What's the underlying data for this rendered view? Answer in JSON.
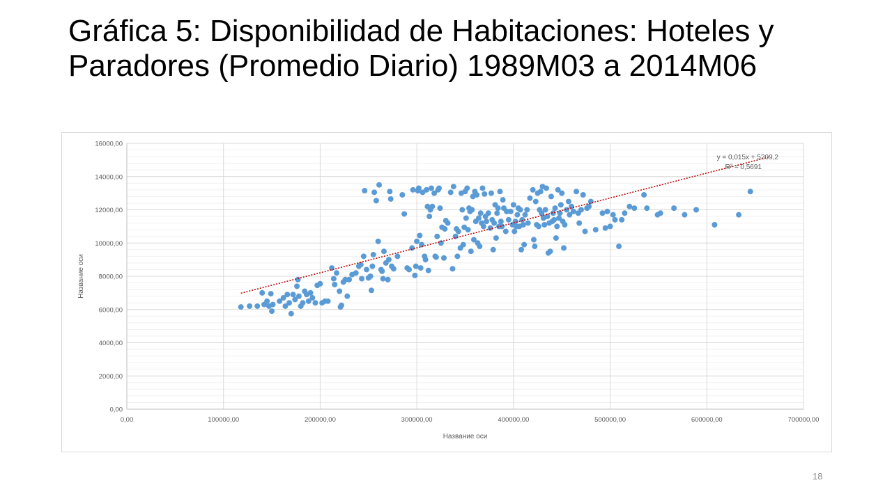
{
  "slide": {
    "title": "Gráfica 5: Disponibilidad de Habitaciones: Hoteles y Paradores (Promedio Diario) 1989M03 a 2014M06",
    "page_number": "18"
  },
  "colors": {
    "points": "#5b9bd5",
    "trendline": "#c00000",
    "gridline": "#d9d9d9",
    "text": "#595959"
  },
  "chart_data": {
    "type": "scatter",
    "xlabel": "Название оси",
    "ylabel": "Название оси",
    "xlim": [
      0,
      700000
    ],
    "ylim": [
      0,
      16000
    ],
    "x_ticks": [
      0,
      100000,
      200000,
      300000,
      400000,
      500000,
      600000,
      700000
    ],
    "x_tick_labels": [
      "0,00",
      "100000,00",
      "200000,00",
      "300000,00",
      "400000,00",
      "500000,00",
      "600000,00",
      "700000,00"
    ],
    "y_ticks": [
      0,
      2000,
      4000,
      6000,
      8000,
      10000,
      12000,
      14000,
      16000
    ],
    "y_tick_labels": [
      "0,00",
      "2000,00",
      "4000,00",
      "6000,00",
      "8000,00",
      "10000,00",
      "12000,00",
      "14000,00",
      "16000,00"
    ],
    "grid": true,
    "legend": "none",
    "trendline": {
      "slope": 0.015,
      "intercept": 5209.2,
      "r2": 0.5691,
      "x_range": [
        118000,
        665000
      ],
      "equation_label": "y = 0,015x + 5209,2",
      "r2_label": "R² = 0,5691"
    },
    "points": [
      [
        118000,
        6150
      ],
      [
        127000,
        6200
      ],
      [
        135000,
        6200
      ],
      [
        140000,
        7000
      ],
      [
        142000,
        6300
      ],
      [
        145000,
        6500
      ],
      [
        147000,
        6200
      ],
      [
        149000,
        6950
      ],
      [
        150000,
        5900
      ],
      [
        151000,
        6300
      ],
      [
        158000,
        6500
      ],
      [
        162000,
        6700
      ],
      [
        164000,
        6200
      ],
      [
        166000,
        6900
      ],
      [
        168000,
        6400
      ],
      [
        170000,
        5750
      ],
      [
        172000,
        6900
      ],
      [
        174000,
        6600
      ],
      [
        176000,
        7400
      ],
      [
        177000,
        7800
      ],
      [
        178000,
        6800
      ],
      [
        180000,
        6200
      ],
      [
        182000,
        6400
      ],
      [
        184000,
        7100
      ],
      [
        186000,
        6900
      ],
      [
        188000,
        6500
      ],
      [
        190000,
        7000
      ],
      [
        192000,
        6700
      ],
      [
        195000,
        6400
      ],
      [
        197000,
        7450
      ],
      [
        200000,
        7550
      ],
      [
        202000,
        6400
      ],
      [
        205000,
        6500
      ],
      [
        208000,
        6500
      ],
      [
        212000,
        8500
      ],
      [
        214000,
        7850
      ],
      [
        215000,
        7500
      ],
      [
        217000,
        8200
      ],
      [
        220000,
        7100
      ],
      [
        221000,
        6150
      ],
      [
        222000,
        6250
      ],
      [
        224000,
        7650
      ],
      [
        226000,
        7800
      ],
      [
        228000,
        6800
      ],
      [
        230000,
        7800
      ],
      [
        233000,
        8100
      ],
      [
        237000,
        8200
      ],
      [
        240000,
        8600
      ],
      [
        242000,
        8700
      ],
      [
        243000,
        7850
      ],
      [
        245000,
        9200
      ],
      [
        246000,
        13150
      ],
      [
        248000,
        8400
      ],
      [
        250000,
        7900
      ],
      [
        252000,
        8000
      ],
      [
        253000,
        7150
      ],
      [
        254000,
        8600
      ],
      [
        255000,
        9300
      ],
      [
        256000,
        13050
      ],
      [
        258000,
        12550
      ],
      [
        260000,
        10100
      ],
      [
        261000,
        13500
      ],
      [
        263000,
        8400
      ],
      [
        264000,
        8300
      ],
      [
        265000,
        7850
      ],
      [
        266000,
        9500
      ],
      [
        268000,
        8800
      ],
      [
        270000,
        7800
      ],
      [
        271000,
        9000
      ],
      [
        272000,
        13100
      ],
      [
        273000,
        12650
      ],
      [
        274000,
        8600
      ],
      [
        276000,
        8450
      ],
      [
        280000,
        9200
      ],
      [
        285000,
        12900
      ],
      [
        287000,
        11750
      ],
      [
        290000,
        8500
      ],
      [
        292000,
        8400
      ],
      [
        295000,
        9700
      ],
      [
        296000,
        13200
      ],
      [
        298000,
        8050
      ],
      [
        299000,
        8600
      ],
      [
        300000,
        10100
      ],
      [
        301000,
        13150
      ],
      [
        302000,
        13300
      ],
      [
        303000,
        10450
      ],
      [
        304000,
        8500
      ],
      [
        305000,
        9900
      ],
      [
        306000,
        13050
      ],
      [
        308000,
        9200
      ],
      [
        309000,
        9000
      ],
      [
        310000,
        13200
      ],
      [
        311000,
        12200
      ],
      [
        312000,
        8350
      ],
      [
        313000,
        11600
      ],
      [
        314000,
        12000
      ],
      [
        315000,
        13300
      ],
      [
        316000,
        12200
      ],
      [
        318000,
        13000
      ],
      [
        319000,
        9200
      ],
      [
        320000,
        9150
      ],
      [
        321000,
        10400
      ],
      [
        322000,
        13200
      ],
      [
        323000,
        13300
      ],
      [
        324000,
        12100
      ],
      [
        325000,
        10000
      ],
      [
        326000,
        10950
      ],
      [
        328000,
        9100
      ],
      [
        329000,
        10850
      ],
      [
        330000,
        11350
      ],
      [
        332000,
        11200
      ],
      [
        335000,
        13050
      ],
      [
        337000,
        8450
      ],
      [
        338000,
        13400
      ],
      [
        340000,
        10400
      ],
      [
        341000,
        10850
      ],
      [
        342000,
        9200
      ],
      [
        343000,
        10700
      ],
      [
        345000,
        9700
      ],
      [
        346000,
        13000
      ],
      [
        347000,
        12000
      ],
      [
        348000,
        9900
      ],
      [
        349000,
        10950
      ],
      [
        350000,
        13100
      ],
      [
        351000,
        11500
      ],
      [
        352000,
        13300
      ],
      [
        353000,
        10800
      ],
      [
        354000,
        12100
      ],
      [
        355000,
        11900
      ],
      [
        356000,
        9500
      ],
      [
        357000,
        12000
      ],
      [
        358000,
        12800
      ],
      [
        359000,
        10200
      ],
      [
        360000,
        13100
      ],
      [
        361000,
        11300
      ],
      [
        362000,
        12900
      ],
      [
        363000,
        10000
      ],
      [
        364000,
        11500
      ],
      [
        365000,
        9800
      ],
      [
        366000,
        11800
      ],
      [
        367000,
        11200
      ],
      [
        368000,
        13300
      ],
      [
        369000,
        11000
      ],
      [
        370000,
        12950
      ],
      [
        371000,
        11600
      ],
      [
        372000,
        11300
      ],
      [
        374000,
        11800
      ],
      [
        376000,
        10900
      ],
      [
        377000,
        13000
      ],
      [
        378000,
        11400
      ],
      [
        379000,
        9600
      ],
      [
        380000,
        11200
      ],
      [
        381000,
        12300
      ],
      [
        382000,
        10300
      ],
      [
        383000,
        11800
      ],
      [
        384000,
        12100
      ],
      [
        385000,
        11000
      ],
      [
        386000,
        13100
      ],
      [
        387000,
        11300
      ],
      [
        388000,
        11000
      ],
      [
        389000,
        12600
      ],
      [
        390000,
        12100
      ],
      [
        392000,
        10700
      ],
      [
        393000,
        11900
      ],
      [
        395000,
        11400
      ],
      [
        397000,
        11900
      ],
      [
        399000,
        11100
      ],
      [
        400000,
        12300
      ],
      [
        401000,
        10700
      ],
      [
        402000,
        11300
      ],
      [
        403000,
        11000
      ],
      [
        404000,
        11700
      ],
      [
        405000,
        12100
      ],
      [
        406000,
        11000
      ],
      [
        407000,
        12000
      ],
      [
        408000,
        9600
      ],
      [
        409000,
        11400
      ],
      [
        410000,
        11100
      ],
      [
        411000,
        9900
      ],
      [
        412000,
        11700
      ],
      [
        414000,
        12000
      ],
      [
        415000,
        11200
      ],
      [
        417000,
        12700
      ],
      [
        420000,
        13200
      ],
      [
        421000,
        10200
      ],
      [
        422000,
        9800
      ],
      [
        423000,
        12500
      ],
      [
        424000,
        11100
      ],
      [
        425000,
        13000
      ],
      [
        426000,
        11000
      ],
      [
        427000,
        12000
      ],
      [
        428000,
        13100
      ],
      [
        429000,
        11800
      ],
      [
        430000,
        13400
      ],
      [
        431000,
        11500
      ],
      [
        432000,
        11100
      ],
      [
        433000,
        12000
      ],
      [
        434000,
        13300
      ],
      [
        435000,
        11600
      ],
      [
        436000,
        9400
      ],
      [
        437000,
        11200
      ],
      [
        438000,
        9500
      ],
      [
        439000,
        12800
      ],
      [
        440000,
        11300
      ],
      [
        441000,
        11800
      ],
      [
        442000,
        11400
      ],
      [
        443000,
        12100
      ],
      [
        444000,
        10300
      ],
      [
        445000,
        11000
      ],
      [
        446000,
        13200
      ],
      [
        447000,
        11500
      ],
      [
        448000,
        11800
      ],
      [
        449000,
        12300
      ],
      [
        450000,
        13000
      ],
      [
        451000,
        11300
      ],
      [
        452000,
        9700
      ],
      [
        453000,
        11100
      ],
      [
        455000,
        12000
      ],
      [
        457000,
        12500
      ],
      [
        458000,
        11700
      ],
      [
        460000,
        12200
      ],
      [
        462000,
        11900
      ],
      [
        465000,
        13100
      ],
      [
        467000,
        11800
      ],
      [
        468000,
        11200
      ],
      [
        470000,
        12000
      ],
      [
        472000,
        12900
      ],
      [
        474000,
        10700
      ],
      [
        476000,
        12100
      ],
      [
        478000,
        12200
      ],
      [
        480000,
        12500
      ],
      [
        485000,
        10800
      ],
      [
        492000,
        11800
      ],
      [
        495000,
        10900
      ],
      [
        497000,
        11900
      ],
      [
        500000,
        11000
      ],
      [
        503000,
        11700
      ],
      [
        505000,
        11400
      ],
      [
        509000,
        9800
      ],
      [
        512000,
        11400
      ],
      [
        515000,
        11800
      ],
      [
        520000,
        12200
      ],
      [
        525000,
        12100
      ],
      [
        535000,
        12900
      ],
      [
        538000,
        12100
      ],
      [
        549000,
        11700
      ],
      [
        552000,
        11800
      ],
      [
        566000,
        12100
      ],
      [
        577000,
        11700
      ],
      [
        589000,
        12000
      ],
      [
        608000,
        11100
      ],
      [
        633000,
        11700
      ],
      [
        645000,
        13100
      ]
    ]
  }
}
